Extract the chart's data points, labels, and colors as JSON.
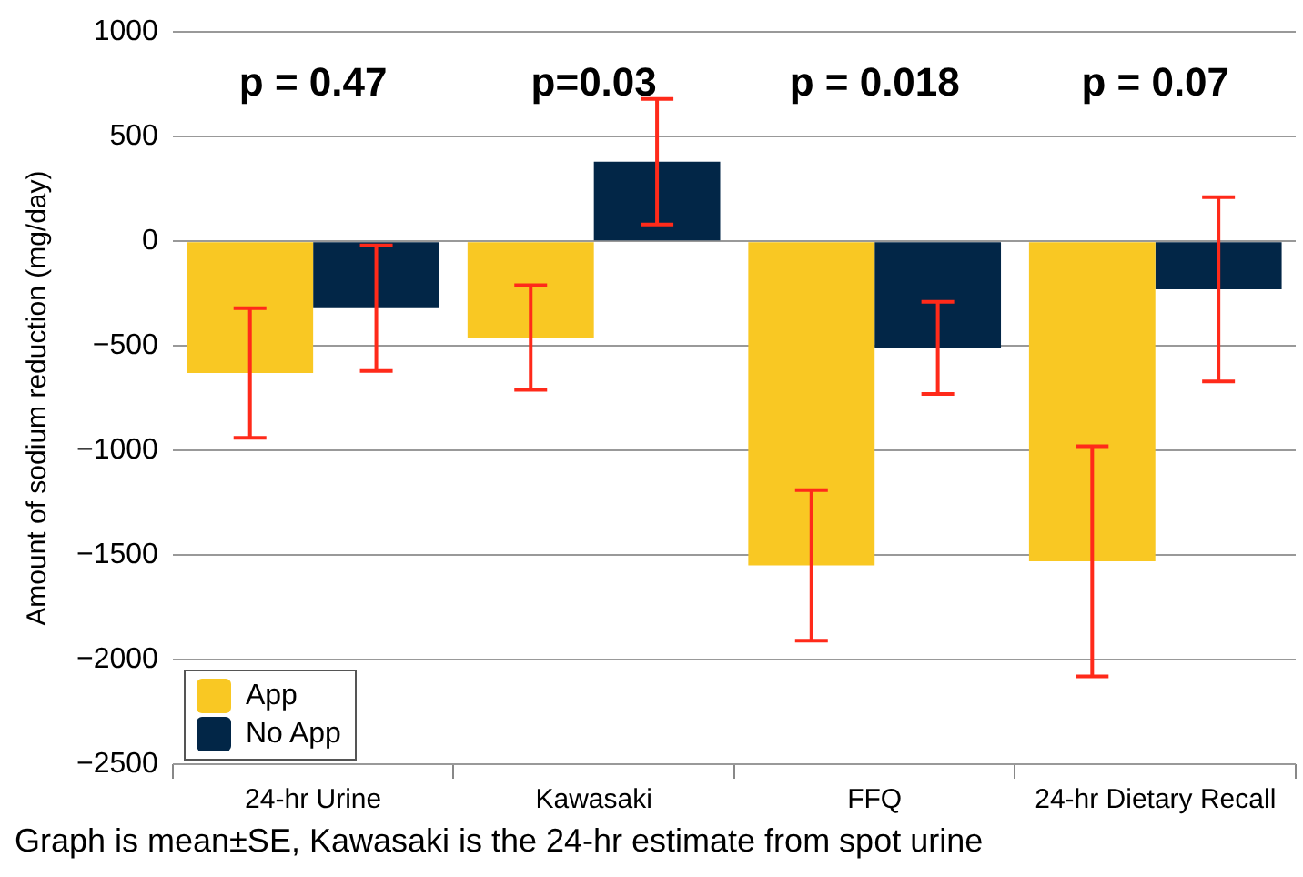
{
  "chart_data": {
    "type": "bar",
    "ylabel": "Amount of sodium reduction (mg/day)",
    "categories": [
      "24-hr Urine",
      "Kawasaki",
      "FFQ",
      "24-hr Dietary Recall"
    ],
    "series": [
      {
        "name": "App",
        "color": "#f9c823",
        "values": [
          -630,
          -460,
          -1550,
          -1530
        ],
        "errors": [
          310,
          250,
          360,
          550
        ]
      },
      {
        "name": "No App",
        "color": "#022647",
        "values": [
          -320,
          380,
          -510,
          -230
        ],
        "errors": [
          300,
          300,
          220,
          440
        ]
      }
    ],
    "ylim": [
      -2500,
      1000
    ],
    "yticks": [
      -2500,
      -2000,
      -1500,
      -1000,
      -500,
      0,
      500,
      1000
    ],
    "grid": "y",
    "legend": "bottom left",
    "annotations": [
      "p = 0.47",
      "p=0.03",
      "p = 0.018",
      "p = 0.07",
      "Graph is mean±SE, Kawasaki is the 24-hr estimate from spot urine"
    ]
  }
}
